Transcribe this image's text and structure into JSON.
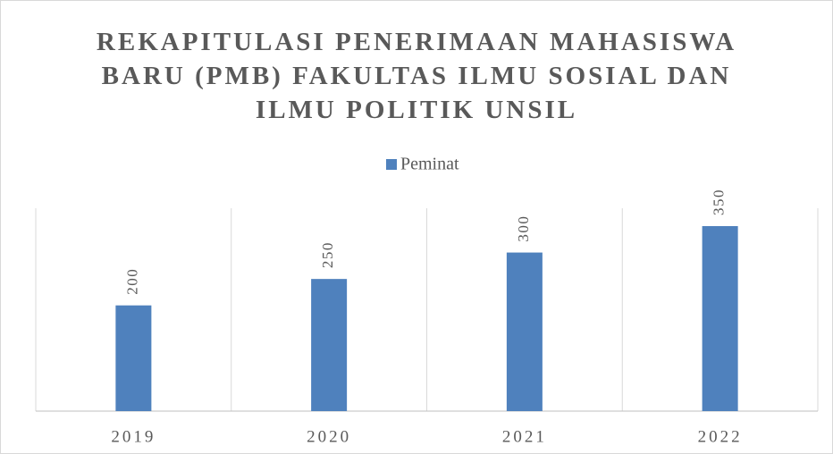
{
  "chart_data": {
    "type": "bar",
    "title": "REKAPITULASI PENERIMAAN MAHASISWA BARU (PMB) FAKULTAS ILMU SOSIAL DAN ILMU POLITIK UNSIL",
    "categories": [
      "2019",
      "2020",
      "2021",
      "2022"
    ],
    "series": [
      {
        "name": "Peminat",
        "color": "#4f81bd",
        "values": [
          200,
          250,
          300,
          350
        ]
      }
    ],
    "legend": "top",
    "grid": true
  }
}
